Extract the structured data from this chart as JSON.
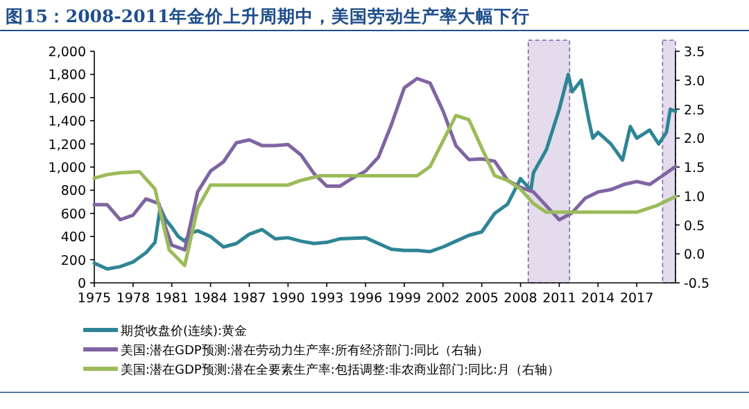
{
  "chart_data": {
    "type": "line",
    "title": "图15：2008-2011年金价上升周期中，美国劳动生产率大幅下行",
    "legend": "bottom",
    "xlim": [
      1975,
      2020
    ],
    "xticks": [
      1975,
      1978,
      1981,
      1984,
      1987,
      1990,
      1993,
      1996,
      1999,
      2002,
      2005,
      2008,
      2011,
      2014,
      2017
    ],
    "ylim": [
      0,
      2000
    ],
    "yticks": [
      0,
      200,
      400,
      600,
      800,
      {
        "value": 1000,
        "label": "1,000"
      },
      {
        "value": 1200,
        "label": "1,200"
      },
      {
        "value": 1400,
        "label": "1,400"
      },
      {
        "value": 1600,
        "label": "1,600"
      },
      {
        "value": 1800,
        "label": "1,800"
      },
      {
        "value": 2000,
        "label": "2,000"
      }
    ],
    "y2lim": [
      -0.5,
      3.5
    ],
    "y2ticks": [
      -0.5,
      {
        "value": 0,
        "label": "0.0"
      },
      0.5,
      {
        "value": 1,
        "label": "1.0"
      },
      1.5,
      {
        "value": 2,
        "label": "2.0"
      },
      2.5,
      {
        "value": 3,
        "label": "3.0"
      },
      3.5
    ],
    "bands": [
      {
        "axis": "x",
        "from": 2008.6,
        "to": 2011.8,
        "color": "#e4dcec"
      },
      {
        "axis": "x",
        "from": 2019.0,
        "to": 2020,
        "color": "#e4dcec"
      }
    ],
    "series": [
      {
        "name": "期货收盘价(连续):黄金",
        "color": "#2e8595",
        "x": [
          1975,
          1976,
          1977,
          1978,
          1979,
          1979.7,
          1980.1,
          1980.5,
          1981,
          1981.5,
          1982,
          1982.5,
          1983,
          1984,
          1985,
          1986,
          1987,
          1988,
          1989,
          1990,
          1991,
          1992,
          1993,
          1994,
          1995,
          1996,
          1997,
          1998,
          1999,
          2000,
          2001,
          2002,
          2003,
          2004,
          2005,
          2006,
          2007,
          2008,
          2008.8,
          2009,
          2010,
          2011,
          2011.7,
          2012,
          2012.7,
          2013.3,
          2013.6,
          2014,
          2015,
          2015.9,
          2016.5,
          2017,
          2018,
          2018.7,
          2019.3,
          2019.6,
          2020
        ],
        "values": [
          170,
          120,
          140,
          180,
          260,
          350,
          650,
          550,
          480,
          400,
          360,
          430,
          450,
          400,
          310,
          340,
          420,
          460,
          380,
          390,
          360,
          340,
          350,
          380,
          385,
          390,
          340,
          290,
          280,
          280,
          270,
          310,
          360,
          410,
          440,
          600,
          680,
          900,
          800,
          950,
          1150,
          1500,
          1800,
          1650,
          1750,
          1400,
          1250,
          1300,
          1200,
          1060,
          1350,
          1250,
          1320,
          1200,
          1300,
          1500,
          1480
        ]
      },
      {
        "name": "美国:潜在GDP预测:潜在劳动力生产率:所有经济部门:同比（右轴）",
        "color": "#8064a2",
        "axis": "y2",
        "x": [
          1975,
          1976,
          1977,
          1978,
          1979,
          1980,
          1980.5,
          1981,
          1982,
          1983,
          1984,
          1985,
          1986,
          1987,
          1988,
          1989,
          1990,
          1991,
          1992,
          1993,
          1994,
          1995,
          1996,
          1997,
          1998,
          1999,
          2000,
          2001,
          2002,
          2003,
          2004,
          2005,
          2006,
          2007,
          2008,
          2009,
          2010,
          2011,
          2012,
          2013,
          2014,
          2015,
          2016,
          2017,
          2018,
          2019,
          2020
        ],
        "values": [
          0.85,
          0.85,
          0.59,
          0.67,
          0.95,
          0.87,
          0.47,
          0.15,
          0.07,
          1.07,
          1.43,
          1.59,
          1.92,
          1.97,
          1.87,
          1.87,
          1.89,
          1.71,
          1.39,
          1.17,
          1.17,
          1.31,
          1.43,
          1.67,
          2.23,
          2.87,
          3.03,
          2.95,
          2.47,
          1.87,
          1.63,
          1.64,
          1.6,
          1.27,
          1.15,
          1.07,
          0.83,
          0.59,
          0.71,
          0.96,
          1.07,
          1.11,
          1.2,
          1.25,
          1.2,
          1.35,
          1.51
        ]
      },
      {
        "name": "美国:潜在GDP预测:潜在全要素生产率:包括调整:非农商业部门:同比:月（右轴）",
        "color": "#9bbb59",
        "axis": "y2",
        "x": [
          1975,
          1976,
          1977,
          1978.5,
          1979.7,
          1980.8,
          1982,
          1983,
          1984,
          1990,
          1991,
          1992.5,
          2000,
          2001,
          2003,
          2004,
          2005,
          2006,
          2007,
          2008,
          2009,
          2010,
          2017,
          2018.5,
          2020
        ],
        "values": [
          1.31,
          1.37,
          1.4,
          1.42,
          1.12,
          0.07,
          -0.2,
          0.79,
          1.19,
          1.19,
          1.27,
          1.35,
          1.35,
          1.51,
          2.39,
          2.32,
          1.83,
          1.35,
          1.27,
          1.12,
          0.87,
          0.72,
          0.72,
          0.83,
          0.99
        ]
      }
    ]
  }
}
